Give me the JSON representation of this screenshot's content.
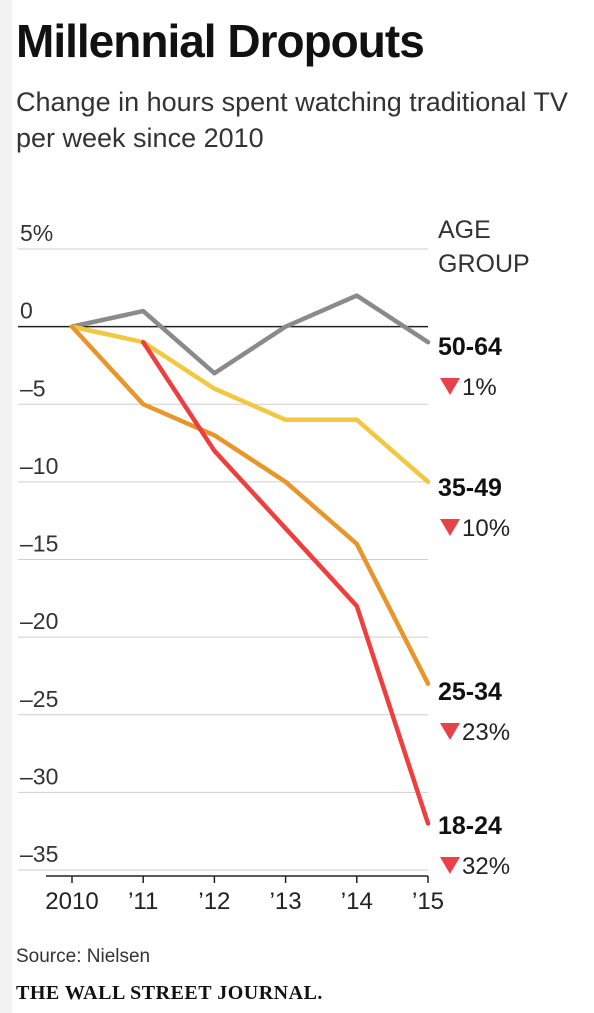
{
  "header": {
    "title": "Millennial Dropouts",
    "subtitle": "Change in hours spent watching traditional TV per week since 2010"
  },
  "legend_title": [
    "AGE",
    "GROUP"
  ],
  "footer": {
    "source": "Source: Nielsen",
    "brand": "THE WALL STREET JOURNAL."
  },
  "chart_data": {
    "type": "line",
    "title": "Millennial Dropouts",
    "subtitle": "Change in hours spent watching traditional TV per week since 2010",
    "xlabel": "",
    "ylabel": "",
    "x": [
      2010,
      2011,
      2012,
      2013,
      2014,
      2015
    ],
    "x_tick_labels": [
      "2010",
      "’11",
      "’12",
      "’13",
      "’14",
      "’15"
    ],
    "ylim": [
      -35,
      5
    ],
    "y_ticks": [
      5,
      0,
      -5,
      -10,
      -15,
      -20,
      -25,
      -30,
      -35
    ],
    "y_tick_labels": [
      "5%",
      "0",
      "–5",
      "–10",
      "–15",
      "–20",
      "–25",
      "–30",
      "–35"
    ],
    "grid": true,
    "legend_position": "right, labels at line ends",
    "series": [
      {
        "name": "50-64",
        "change_label": "1%",
        "color": "#8a8a8a",
        "values": [
          0,
          1,
          -3,
          0,
          2,
          -1
        ]
      },
      {
        "name": "35-49",
        "change_label": "10%",
        "color": "#f2c840",
        "values": [
          0,
          -1,
          -4,
          -6,
          -6,
          -10
        ]
      },
      {
        "name": "25-34",
        "change_label": "23%",
        "color": "#e8952a",
        "values": [
          0,
          -5,
          -7,
          -10,
          -14,
          -23
        ]
      },
      {
        "name": "18-24",
        "change_label": "32%",
        "color": "#ef3e3e",
        "values": [
          null,
          -1,
          -8,
          -13,
          -18,
          -32
        ]
      }
    ],
    "down_arrow_color": "#e8414a"
  }
}
